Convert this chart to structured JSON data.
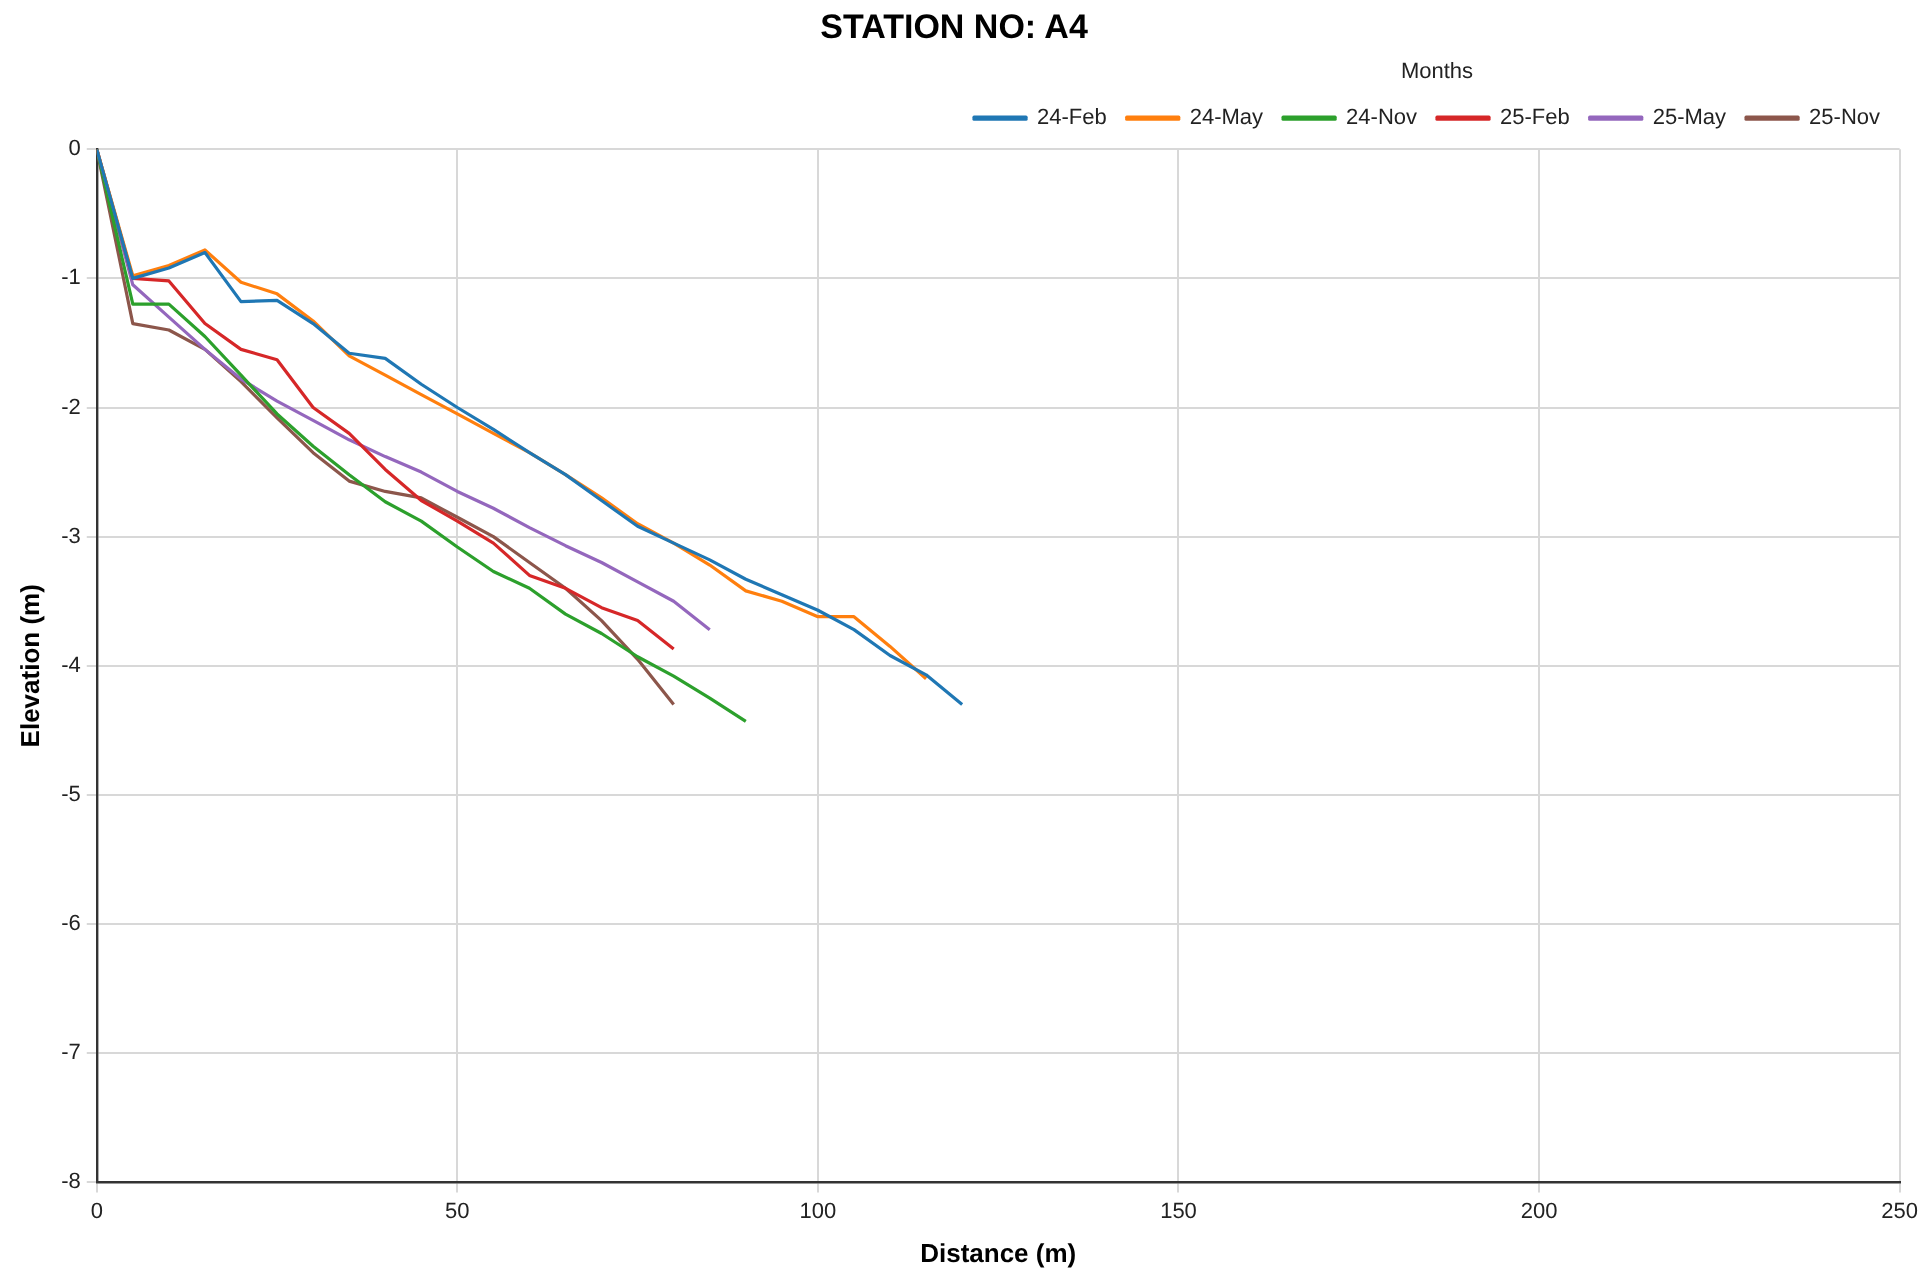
{
  "chart_data": {
    "type": "line",
    "title": "STATION NO: A4",
    "xlabel": "Distance (m)",
    "ylabel": "Elevation (m)",
    "legend_title": "Months",
    "legend": "top right",
    "grid": true,
    "line_style": "solid",
    "marker": "none",
    "xlim": [
      0,
      250
    ],
    "xticks": [
      0,
      50,
      100,
      150,
      200,
      250
    ],
    "ylim": [
      -8,
      0
    ],
    "yticks": [
      -8,
      -7,
      -6,
      -5,
      -4,
      -3,
      -2,
      -1,
      0
    ],
    "series": [
      {
        "name": "24-Feb",
        "color": "#1f77b4",
        "x": [
          0,
          5,
          10,
          15,
          20,
          25,
          30,
          35,
          40,
          45,
          50,
          55,
          60,
          65,
          70,
          75,
          80,
          85,
          90,
          95,
          100,
          105,
          110,
          115,
          120
        ],
        "values": [
          0,
          -1.0,
          -0.92,
          -0.8,
          -1.18,
          -1.17,
          -1.35,
          -1.58,
          -1.62,
          -1.82,
          -2.0,
          -2.17,
          -2.35,
          -2.52,
          -2.72,
          -2.92,
          -3.05,
          -3.18,
          -3.33,
          -3.45,
          -3.57,
          -3.72,
          -3.92,
          -4.07,
          -4.3
        ]
      },
      {
        "name": "24-May",
        "color": "#ff7f0e",
        "x": [
          0,
          5,
          10,
          15,
          20,
          25,
          30,
          35,
          40,
          45,
          50,
          55,
          60,
          65,
          70,
          75,
          80,
          85,
          90,
          95,
          100,
          105,
          110,
          115
        ],
        "values": [
          0,
          -0.98,
          -0.9,
          -0.78,
          -1.03,
          -1.12,
          -1.33,
          -1.6,
          -1.75,
          -1.9,
          -2.05,
          -2.2,
          -2.35,
          -2.52,
          -2.7,
          -2.9,
          -3.05,
          -3.22,
          -3.42,
          -3.5,
          -3.62,
          -3.62,
          -3.85,
          -4.1
        ]
      },
      {
        "name": "24-Nov",
        "color": "#2ca02c",
        "x": [
          0,
          5,
          10,
          15,
          20,
          25,
          30,
          35,
          40,
          45,
          50,
          55,
          60,
          65,
          70,
          75,
          80,
          85,
          90
        ],
        "values": [
          0,
          -1.2,
          -1.2,
          -1.45,
          -1.75,
          -2.05,
          -2.3,
          -2.52,
          -2.73,
          -2.88,
          -3.08,
          -3.27,
          -3.4,
          -3.6,
          -3.75,
          -3.93,
          -4.08,
          -4.25,
          -4.43
        ]
      },
      {
        "name": "25-Feb",
        "color": "#d62728",
        "x": [
          0,
          5,
          10,
          15,
          20,
          25,
          30,
          35,
          40,
          45,
          50,
          55,
          60,
          65,
          70,
          75,
          80
        ],
        "values": [
          0,
          -1.0,
          -1.02,
          -1.35,
          -1.55,
          -1.63,
          -2.0,
          -2.2,
          -2.48,
          -2.72,
          -2.88,
          -3.05,
          -3.3,
          -3.4,
          -3.55,
          -3.65,
          -3.87
        ]
      },
      {
        "name": "25-May",
        "color": "#9467bd",
        "x": [
          0,
          5,
          10,
          15,
          20,
          25,
          30,
          35,
          40,
          45,
          50,
          55,
          60,
          65,
          70,
          75,
          80,
          85
        ],
        "values": [
          0,
          -1.05,
          -1.3,
          -1.55,
          -1.78,
          -1.95,
          -2.1,
          -2.25,
          -2.38,
          -2.5,
          -2.65,
          -2.78,
          -2.93,
          -3.07,
          -3.2,
          -3.35,
          -3.5,
          -3.72
        ]
      },
      {
        "name": "25-Nov",
        "color": "#8c564b",
        "x": [
          0,
          5,
          10,
          15,
          20,
          25,
          30,
          35,
          40,
          45,
          50,
          55,
          60,
          65,
          70,
          75,
          80
        ],
        "values": [
          0,
          -1.35,
          -1.4,
          -1.55,
          -1.8,
          -2.08,
          -2.35,
          -2.57,
          -2.65,
          -2.7,
          -2.85,
          -3.0,
          -3.2,
          -3.4,
          -3.65,
          -3.95,
          -4.3
        ]
      }
    ]
  }
}
